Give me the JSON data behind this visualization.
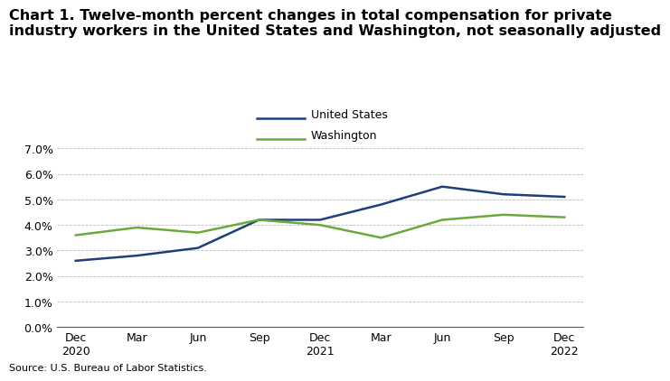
{
  "title_line1": "Chart 1. Twelve-month percent changes in total compensation for private",
  "title_line2": "industry workers in the United States and Washington, not seasonally adjusted",
  "x_labels": [
    "Dec\n2020",
    "Mar",
    "Jun",
    "Sep",
    "Dec\n2021",
    "Mar",
    "Jun",
    "Sep",
    "Dec\n2022"
  ],
  "us_values": [
    2.6,
    2.8,
    3.1,
    4.2,
    4.2,
    4.8,
    5.5,
    5.2,
    5.1
  ],
  "wa_values": [
    3.6,
    3.9,
    3.7,
    4.2,
    4.0,
    3.5,
    4.2,
    4.4,
    4.3
  ],
  "us_color": "#1f3f7a",
  "wa_color": "#6aaa3a",
  "ylim": [
    0.0,
    7.0
  ],
  "yticks": [
    0.0,
    1.0,
    2.0,
    3.0,
    4.0,
    5.0,
    6.0,
    7.0
  ],
  "legend_labels": [
    "United States",
    "Washington"
  ],
  "source_text": "Source: U.S. Bureau of Labor Statistics.",
  "background_color": "#ffffff",
  "grid_color": "#aaaaaa",
  "line_width": 1.8,
  "title_fontsize": 11.5,
  "tick_fontsize": 9,
  "source_fontsize": 8
}
